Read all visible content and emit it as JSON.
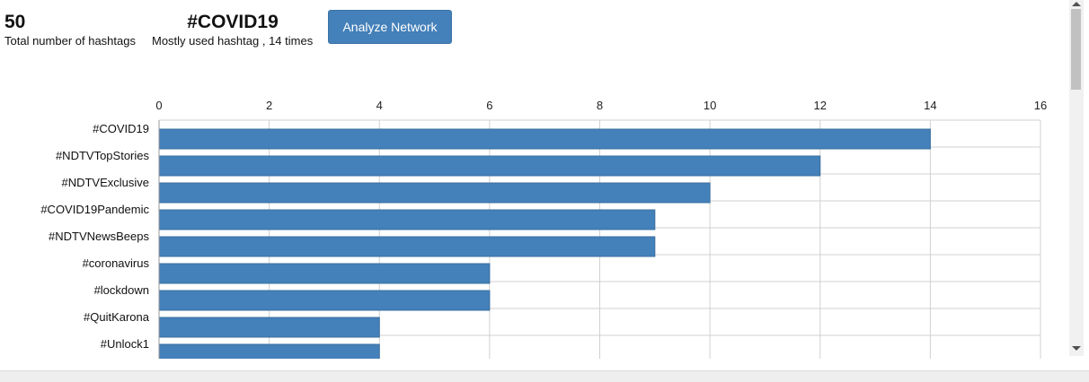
{
  "stats": {
    "total_value": "50",
    "total_label": "Total number of hashtags",
    "top_value": "#COVID19",
    "top_label": "Mostly used hashtag , 14 times"
  },
  "toolbar": {
    "analyze_label": "Analyze Network"
  },
  "colors": {
    "bar": "#4480b9",
    "bar_border": "#3a6fa0",
    "grid": "#d0d0d0",
    "button": "#4480b9"
  },
  "chart_data": {
    "type": "bar",
    "orientation": "horizontal",
    "categories": [
      "#COVID19",
      "#NDTVTopStories",
      "#NDTVExclusive",
      "#COVID19Pandemic",
      "#NDTVNewsBeeps",
      "#coronavirus",
      "#lockdown",
      "#QuitKarona",
      "#Unlock1"
    ],
    "values": [
      14,
      12,
      10,
      9,
      9,
      6,
      6,
      4,
      4
    ],
    "xlim": [
      0,
      16
    ],
    "xticks": [
      0,
      2,
      4,
      6,
      8,
      10,
      12,
      14,
      16
    ],
    "axis_position": "top",
    "grid": true,
    "title": "",
    "xlabel": "",
    "ylabel": ""
  }
}
